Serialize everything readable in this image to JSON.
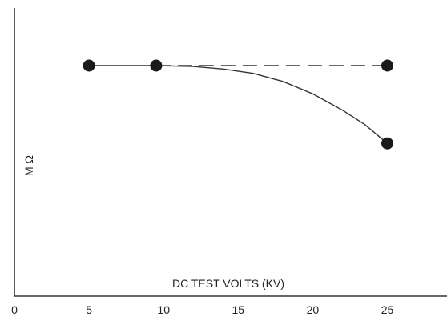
{
  "chart_data": {
    "type": "line",
    "xlabel": "DC TEST VOLTS (KV)",
    "ylabel": "M Ω",
    "x_ticks": [
      "0",
      "5",
      "10",
      "15",
      "20",
      "25"
    ],
    "xlim": [
      0,
      29
    ],
    "ylim": [
      0,
      100
    ],
    "grid": false,
    "y_ticks_shown": false,
    "series": [
      {
        "style": "dashed",
        "points": [
          {
            "x": 9.5,
            "y": 80
          },
          {
            "x": 25,
            "y": 80
          }
        ],
        "markers": false
      },
      {
        "style": "solid",
        "points": [
          {
            "x": 5,
            "y": 80
          },
          {
            "x": 9.5,
            "y": 80
          },
          {
            "x": 12,
            "y": 79.7
          },
          {
            "x": 14,
            "y": 78.8
          },
          {
            "x": 16,
            "y": 77.3
          },
          {
            "x": 18,
            "y": 74.5
          },
          {
            "x": 20,
            "y": 70.2
          },
          {
            "x": 22,
            "y": 64.5
          },
          {
            "x": 23.5,
            "y": 59.5
          },
          {
            "x": 25,
            "y": 53
          }
        ],
        "markers": false
      }
    ],
    "markers": [
      {
        "x": 5,
        "y": 80
      },
      {
        "x": 9.5,
        "y": 80
      },
      {
        "x": 25,
        "y": 80
      },
      {
        "x": 25,
        "y": 53
      }
    ]
  }
}
